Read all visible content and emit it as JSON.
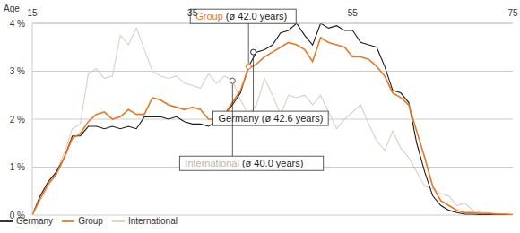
{
  "chart_data": {
    "type": "line",
    "x_label": "Age",
    "x": [
      15,
      16,
      17,
      18,
      19,
      20,
      21,
      22,
      23,
      24,
      25,
      26,
      27,
      28,
      29,
      30,
      31,
      32,
      33,
      34,
      35,
      36,
      37,
      38,
      39,
      40,
      41,
      42,
      43,
      44,
      45,
      46,
      47,
      48,
      49,
      50,
      51,
      52,
      53,
      54,
      55,
      56,
      57,
      58,
      59,
      60,
      61,
      62,
      63,
      64,
      65,
      66,
      67,
      68,
      69,
      70,
      71,
      72,
      73,
      74,
      75
    ],
    "xlim": [
      15,
      75
    ],
    "xticks": [
      15,
      35,
      55,
      75
    ],
    "ylim": [
      0,
      4
    ],
    "yticks": [
      {
        "value": 0,
        "label": "0 %"
      },
      {
        "value": 1,
        "label": "1 %"
      },
      {
        "value": 2,
        "label": "2 %"
      },
      {
        "value": 3,
        "label": "3 %"
      },
      {
        "value": 4,
        "label": "4 %"
      }
    ],
    "grid": true,
    "legend": "bottom left",
    "series": [
      {
        "name": "Group",
        "color": "#e87722",
        "annotation": "Group (ø 42.0 years)",
        "mean": {
          "x": 42.0,
          "y": 3.1
        },
        "values": [
          0,
          0.35,
          0.65,
          0.85,
          1.2,
          1.6,
          1.7,
          1.95,
          2.1,
          2.15,
          2.0,
          2.05,
          2.2,
          2.1,
          2.1,
          2.45,
          2.4,
          2.3,
          2.25,
          2.2,
          2.25,
          2.2,
          2.0,
          2.0,
          2.1,
          2.35,
          2.6,
          3.05,
          3.15,
          3.3,
          3.4,
          3.5,
          3.6,
          3.55,
          3.45,
          3.2,
          3.7,
          3.6,
          3.55,
          3.5,
          3.3,
          3.3,
          3.25,
          3.1,
          2.9,
          2.55,
          2.45,
          2.3,
          1.75,
          1.2,
          0.6,
          0.3,
          0.2,
          0.1,
          0.05,
          0.05,
          0.03,
          0.03,
          0.02,
          0.02,
          0.01
        ]
      },
      {
        "name": "Germany",
        "color": "#1a1a1a",
        "annotation": "Germany (ø 42.6 years)",
        "mean": {
          "x": 42.6,
          "y": 3.4
        },
        "values": [
          0,
          0.4,
          0.7,
          0.9,
          1.2,
          1.65,
          1.65,
          1.85,
          1.85,
          1.8,
          1.85,
          1.8,
          1.85,
          1.8,
          2.05,
          2.05,
          2.05,
          2.0,
          2.05,
          1.95,
          1.9,
          1.9,
          1.85,
          1.95,
          2.1,
          2.3,
          2.55,
          3.1,
          3.4,
          3.45,
          3.55,
          3.8,
          3.85,
          4.0,
          3.75,
          3.55,
          4.0,
          3.9,
          3.95,
          3.85,
          3.85,
          3.6,
          3.55,
          3.5,
          3.1,
          2.6,
          2.55,
          2.35,
          1.5,
          0.9,
          0.4,
          0.2,
          0.1,
          0.05,
          0.02,
          0.02,
          0.01,
          0.01,
          0.01,
          0.01,
          0.01
        ]
      },
      {
        "name": "International",
        "color": "#d9cfc5",
        "annotation": "International (ø 40.0 years)",
        "mean": {
          "x": 40.0,
          "y": 2.8
        },
        "values": [
          0,
          0.3,
          0.6,
          0.9,
          1.3,
          1.8,
          1.9,
          2.95,
          3.05,
          2.85,
          2.9,
          3.75,
          3.55,
          3.9,
          3.45,
          3.0,
          2.9,
          2.85,
          2.9,
          2.75,
          2.7,
          2.65,
          2.95,
          2.75,
          2.9,
          2.8,
          2.4,
          2.1,
          2.3,
          2.85,
          2.5,
          2.1,
          2.5,
          2.45,
          2.5,
          2.3,
          2.5,
          2.15,
          1.8,
          2.0,
          2.15,
          2.3,
          1.9,
          1.55,
          1.35,
          1.75,
          1.4,
          1.2,
          0.9,
          0.6,
          0.55,
          0.45,
          0.4,
          0.2,
          0.25,
          0.1,
          0.05,
          0.05,
          0.03,
          0.02,
          0.01
        ]
      }
    ]
  }
}
